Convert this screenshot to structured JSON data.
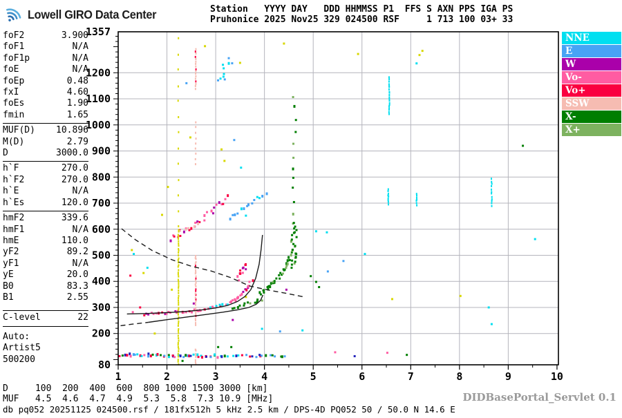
{
  "header": {
    "logo_text": "Lowell GIRO Data Center",
    "station_line1": "Station   YYYY DAY   DDD HHMMSS P1  FFS S AXN PPS IGA PS",
    "station_line2": "Pruhonice 2025 Nov25 329 024500 RSF     1 713 100 03+ 33"
  },
  "left_panel": {
    "groups": [
      {
        "rows": [
          {
            "label": "foF2",
            "value": "3.900"
          },
          {
            "label": "foF1",
            "value": "N/A"
          },
          {
            "label": "foF1p",
            "value": "N/A"
          },
          {
            "label": "foE",
            "value": "N/A"
          },
          {
            "label": "foEp",
            "value": "0.48"
          },
          {
            "label": "fxI",
            "value": "4.60"
          },
          {
            "label": "foEs",
            "value": "1.90"
          },
          {
            "label": "fmin",
            "value": "1.65"
          }
        ]
      },
      {
        "rows": [
          {
            "label": "MUF(D)",
            "value": "10.896"
          },
          {
            "label": "M(D)",
            "value": "2.79"
          },
          {
            "label": "D",
            "value": "3000.0"
          }
        ]
      },
      {
        "rows": [
          {
            "label": "h`F",
            "value": "270.0"
          },
          {
            "label": "h`F2",
            "value": "270.0"
          },
          {
            "label": "h`E",
            "value": "N/A"
          },
          {
            "label": "h`Es",
            "value": "120.0"
          }
        ]
      },
      {
        "rows": [
          {
            "label": "hmF2",
            "value": "339.6"
          },
          {
            "label": "hmF1",
            "value": "N/A"
          },
          {
            "label": "hmE",
            "value": "110.0"
          },
          {
            "label": "yF2",
            "value": "89.2"
          },
          {
            "label": "yF1",
            "value": "N/A"
          },
          {
            "label": "yE",
            "value": "20.0"
          },
          {
            "label": "B0",
            "value": "83.3"
          },
          {
            "label": "B1",
            "value": "2.55"
          }
        ]
      }
    ],
    "c_level": {
      "label": "C-level",
      "value": "22"
    },
    "auto": {
      "label": "Auto:",
      "lines": [
        "Artist5",
        "500200"
      ]
    }
  },
  "legend": {
    "items": [
      {
        "label": "NNE",
        "color": "#00DFF0"
      },
      {
        "label": "E",
        "color": "#47A3F5"
      },
      {
        "label": "W",
        "color": "#AA00AA"
      },
      {
        "label": "Vo-",
        "color": "#FF5CA2"
      },
      {
        "label": "Vo+",
        "color": "#FA0040"
      },
      {
        "label": "SSW",
        "color": "#F6BCB2"
      },
      {
        "label": "X-",
        "color": "#007E00"
      },
      {
        "label": "X+",
        "color": "#7DB25F"
      }
    ]
  },
  "chart_data": {
    "type": "scatter",
    "title": "Pruhonice ionogram 2025 Nov25 024500",
    "x_axis": {
      "label": "[MHz]",
      "min": 1,
      "max": 10.05,
      "ticks": [
        1,
        2,
        3,
        4,
        5,
        6,
        7,
        8,
        9,
        10
      ]
    },
    "y_axis": {
      "label": "[km]",
      "min": 80,
      "max": 1357,
      "tick_labels": [
        1357,
        1200,
        1100,
        1000,
        900,
        800,
        700,
        600,
        500,
        400,
        300,
        200,
        80
      ],
      "grid_km": [
        200,
        300,
        400,
        500,
        600,
        700,
        800,
        900,
        1000,
        1100,
        1200
      ]
    },
    "colors": {
      "NNE": "#00DFF0",
      "E": "#47A3F5",
      "W": "#AA00AA",
      "Vo-": "#FF5CA2",
      "Vo+": "#FA0040",
      "SSW": "#F6BCB2",
      "X-": "#007E00",
      "X+": "#7DB25F",
      "yellow": "#D8D800",
      "navy": "#2222BB",
      "grid": "#b4b4bc",
      "frame": "#000000",
      "curve": "#1a1a1a"
    },
    "curves": [
      {
        "name": "transmission-curve",
        "style": "dashed",
        "points": [
          [
            1.07,
            602
          ],
          [
            1.35,
            560
          ],
          [
            1.7,
            518
          ],
          [
            2.1,
            483
          ],
          [
            2.5,
            458
          ],
          [
            2.9,
            440
          ],
          [
            3.3,
            415
          ],
          [
            3.7,
            382
          ],
          [
            4.1,
            366
          ],
          [
            4.5,
            352
          ],
          [
            4.82,
            340
          ]
        ]
      },
      {
        "name": "fitted-trace",
        "style": "solid",
        "points": [
          [
            1.18,
            275
          ],
          [
            1.6,
            277
          ],
          [
            2.0,
            280
          ],
          [
            2.35,
            284
          ],
          [
            2.7,
            290
          ],
          [
            3.0,
            298
          ],
          [
            3.25,
            308
          ],
          [
            3.45,
            323
          ],
          [
            3.6,
            342
          ],
          [
            3.72,
            368
          ],
          [
            3.82,
            412
          ],
          [
            3.89,
            465
          ],
          [
            3.93,
            520
          ],
          [
            3.96,
            578
          ]
        ]
      },
      {
        "name": "profile-extrapolated",
        "style": "dashed",
        "points": [
          [
            1.05,
            230
          ],
          [
            1.3,
            236
          ],
          [
            1.62,
            243
          ]
        ]
      },
      {
        "name": "true-height-profile",
        "style": "solid",
        "points": [
          [
            1.62,
            243
          ],
          [
            2.0,
            253
          ],
          [
            2.4,
            263
          ],
          [
            2.8,
            273
          ],
          [
            3.15,
            282
          ],
          [
            3.45,
            291
          ],
          [
            3.68,
            300
          ],
          [
            3.83,
            312
          ],
          [
            3.92,
            327
          ],
          [
            3.97,
            348
          ]
        ]
      }
    ],
    "clusters": [
      {
        "name": "es-layer",
        "type": "band",
        "from": [
          1.05,
          117
        ],
        "to": [
          3.1,
          114
        ],
        "n": 46,
        "spread": 6,
        "colors": [
          "NNE",
          "E",
          "Vo+",
          "NNE",
          "Vo-",
          "X-",
          "navy",
          "E",
          "Vo+",
          "NNE"
        ]
      },
      {
        "name": "es-layer-tail",
        "type": "band",
        "from": [
          3.12,
          115
        ],
        "to": [
          4.45,
          112
        ],
        "n": 20,
        "spread": 4,
        "colors": [
          "X-",
          "NNE",
          "Vo+",
          "E",
          "X-",
          "navy"
        ]
      },
      {
        "name": "f-trace-o1",
        "type": "band",
        "from": [
          1.55,
          272
        ],
        "to": [
          2.7,
          290
        ],
        "n": 24,
        "spread": 5,
        "colors": [
          "Vo-",
          "Vo+",
          "Vo-",
          "W",
          "Vo-"
        ]
      },
      {
        "name": "f-trace-o2",
        "type": "band",
        "from": [
          2.7,
          292
        ],
        "to": [
          3.35,
          317
        ],
        "n": 15,
        "spread": 5,
        "colors": [
          "Vo-",
          "Vo+",
          "Vo-",
          "NNE"
        ]
      },
      {
        "name": "f-trace-o3",
        "type": "band",
        "from": [
          3.35,
          320
        ],
        "to": [
          3.73,
          398
        ],
        "n": 16,
        "spread": 8,
        "colors": [
          "Vo-",
          "W",
          "Vo+",
          "Vo-"
        ]
      },
      {
        "name": "f-trace-spread",
        "type": "band",
        "from": [
          3.45,
          412
        ],
        "to": [
          3.62,
          465
        ],
        "n": 12,
        "spread": 10,
        "colors": [
          "Vo-",
          "W",
          "Vo+"
        ]
      },
      {
        "name": "x-trace-low",
        "type": "band",
        "from": [
          3.32,
          298
        ],
        "to": [
          3.95,
          330
        ],
        "n": 12,
        "spread": 5,
        "colors": [
          "X-",
          "X+",
          "X-"
        ]
      },
      {
        "name": "x-trace-1",
        "type": "band",
        "from": [
          3.92,
          352
        ],
        "to": [
          4.35,
          428
        ],
        "n": 20,
        "spread": 7,
        "colors": [
          "X-",
          "X+",
          "X-",
          "X-"
        ]
      },
      {
        "name": "x-trace-2",
        "type": "band",
        "from": [
          4.36,
          432
        ],
        "to": [
          4.56,
          505
        ],
        "n": 14,
        "spread": 7,
        "colors": [
          "X-",
          "X+",
          "X-"
        ]
      },
      {
        "name": "x-trace-column",
        "type": "band",
        "from": [
          4.59,
          455
        ],
        "to": [
          4.61,
          625
        ],
        "n": 26,
        "spread": 4,
        "fj": 0.06,
        "colors": [
          "X-",
          "X-",
          "X+",
          "X-"
        ]
      },
      {
        "name": "x-trace-2hop",
        "type": "band",
        "from": [
          4.5,
          660
        ],
        "to": [
          4.66,
          1105
        ],
        "n": 11,
        "spread": 12,
        "fj": 0.1,
        "colors": [
          "X-",
          "X+"
        ]
      },
      {
        "name": "second-hop-o",
        "type": "band",
        "from": [
          2.05,
          552
        ],
        "to": [
          3.28,
          718
        ],
        "n": 26,
        "spread": 12,
        "colors": [
          "Vo-",
          "Vo+",
          "Vo-",
          "Vo-",
          "W"
        ]
      },
      {
        "name": "second-hop-blue",
        "type": "band",
        "from": [
          3.32,
          648
        ],
        "to": [
          4.02,
          738
        ],
        "n": 14,
        "spread": 10,
        "colors": [
          "E",
          "NNE",
          "E"
        ]
      },
      {
        "name": "second-hop-salmon",
        "type": "band",
        "from": [
          2.28,
          588
        ],
        "to": [
          2.62,
          622
        ],
        "n": 5,
        "spread": 6,
        "colors": [
          "SSW"
        ]
      },
      {
        "name": "interference-2-2mhz",
        "type": "vstripe",
        "x": 2.235,
        "km": [
          84,
          598
        ],
        "n": 58,
        "colors": [
          "yellow"
        ]
      },
      {
        "name": "interference-2-2mhz-upper",
        "type": "vstripe",
        "x": 2.235,
        "km": [
          610,
          1330
        ],
        "n": 13,
        "colors": [
          "yellow"
        ]
      },
      {
        "name": "interference-2-6mhz-low",
        "type": "vstripe",
        "x": 2.59,
        "km": [
          84,
          140
        ],
        "n": 8,
        "colors": [
          "SSW"
        ]
      },
      {
        "name": "interference-2-6mhz-mid",
        "type": "vstripe",
        "x": 2.59,
        "km": [
          235,
          500
        ],
        "n": 34,
        "colors": [
          "SSW",
          "SSW",
          "SSW",
          "Vo+"
        ]
      },
      {
        "name": "interference-2-6mhz-high",
        "type": "vstripe",
        "x": 2.59,
        "km": [
          850,
          1010
        ],
        "n": 9,
        "colors": [
          "SSW"
        ]
      },
      {
        "name": "interference-2-6mhz-top",
        "type": "vstripe",
        "x": 2.59,
        "km": [
          1140,
          1292
        ],
        "n": 17,
        "colors": [
          "SSW",
          "SSW",
          "Vo+"
        ]
      },
      {
        "name": "noise-cyan-6-5mhz-top",
        "type": "vstripe",
        "x": 6.56,
        "km": [
          1042,
          1180
        ],
        "n": 20,
        "colors": [
          "NNE"
        ]
      },
      {
        "name": "noise-cyan-6-5mhz",
        "type": "vstripe",
        "x": 6.54,
        "km": [
          698,
          752
        ],
        "n": 9,
        "colors": [
          "NNE"
        ]
      },
      {
        "name": "noise-cyan-7-1mhz",
        "type": "vstripe",
        "x": 7.12,
        "km": [
          694,
          736
        ],
        "n": 7,
        "colors": [
          "NNE"
        ]
      },
      {
        "name": "noise-cyan-8-65mhz",
        "type": "vstripe",
        "x": 8.66,
        "km": [
          688,
          792
        ],
        "n": 12,
        "colors": [
          "NNE"
        ]
      },
      {
        "name": "noise-cyan-3-2mhz-top",
        "type": "band",
        "from": [
          3.1,
          1160
        ],
        "to": [
          3.28,
          1252
        ],
        "n": 10,
        "spread": 14,
        "fj": 0.08,
        "colors": [
          "NNE",
          "E"
        ]
      },
      {
        "name": "noise-singles",
        "type": "singles",
        "points": [
          [
            1.28,
            520,
            "yellow"
          ],
          [
            1.52,
            432,
            "yellow"
          ],
          [
            1.9,
            655,
            "yellow"
          ],
          [
            2.02,
            762,
            "yellow"
          ],
          [
            1.75,
            200,
            "yellow"
          ],
          [
            2.1,
            368,
            "yellow"
          ],
          [
            2.48,
            952,
            "yellow"
          ],
          [
            3.12,
            906,
            "yellow"
          ],
          [
            3.18,
            862,
            "yellow"
          ],
          [
            3.5,
            1238,
            "yellow"
          ],
          [
            3.62,
            340,
            "yellow"
          ],
          [
            2.78,
            1302,
            "yellow"
          ],
          [
            4.4,
            1312,
            "yellow"
          ],
          [
            6.62,
            332,
            "yellow"
          ],
          [
            8.02,
            344,
            "yellow"
          ],
          [
            7.18,
            1268,
            "yellow"
          ],
          [
            7.24,
            1284,
            "yellow"
          ],
          [
            5.92,
            1272,
            "yellow"
          ],
          [
            1.32,
            505,
            "NNE"
          ],
          [
            1.6,
            452,
            "NNE"
          ],
          [
            2.4,
            1160,
            "E"
          ],
          [
            3.38,
            942,
            "E"
          ],
          [
            3.52,
            836,
            "NNE"
          ],
          [
            3.62,
            652,
            "NNE"
          ],
          [
            3.95,
            218,
            "NNE"
          ],
          [
            4.32,
            208,
            "E"
          ],
          [
            4.78,
            212,
            "NNE"
          ],
          [
            5.06,
            592,
            "NNE"
          ],
          [
            5.3,
            438,
            "E"
          ],
          [
            6.06,
            505,
            "NNE"
          ],
          [
            7.12,
            1236,
            "NNE"
          ],
          [
            5.28,
            588,
            "NNE"
          ],
          [
            5.62,
            478,
            "E"
          ],
          [
            8.6,
            300,
            "NNE"
          ],
          [
            9.55,
            562,
            "NNE"
          ],
          [
            8.66,
            236,
            "NNE"
          ],
          [
            3.05,
            148,
            "X-"
          ],
          [
            3.32,
            148,
            "X-"
          ],
          [
            2.32,
            95,
            "X-"
          ],
          [
            4.95,
            420,
            "X-"
          ],
          [
            5.06,
            398,
            "X-"
          ],
          [
            5.12,
            378,
            "X-"
          ],
          [
            9.3,
            920,
            "X-"
          ],
          [
            6.92,
            118,
            "X-"
          ],
          [
            2.55,
            315,
            "W"
          ],
          [
            3.35,
            252,
            "W"
          ],
          [
            4.45,
            368,
            "W"
          ],
          [
            6.52,
            126,
            "Vo-"
          ],
          [
            5.45,
            128,
            "Vo-"
          ],
          [
            3.9,
            118,
            "navy"
          ],
          [
            5.85,
            113,
            "navy"
          ],
          [
            1.25,
            422,
            "Vo+"
          ],
          [
            1.45,
            300,
            "Vo+"
          ],
          [
            2.15,
            572,
            "Vo+"
          ],
          [
            1.18,
            118,
            "Vo+"
          ],
          [
            1.3,
            282,
            "Vo-"
          ]
        ]
      }
    ]
  },
  "bottom": {
    "d_row": "D     100  200  400  600  800 1000 1500 3000 [km]",
    "muf_row": "MUF   4.5  4.6  4.7  4.9  5.3  5.8  7.3 10.9 [MHz]",
    "db_line": "db pq052 20251125 024500.rsf / 181fx512h 5 kHz 2.5 km / DPS-4D PQ052 50 / 50.0 N 14.6 E",
    "servlet": "DIDBasePortal_Servlet 0.1"
  }
}
